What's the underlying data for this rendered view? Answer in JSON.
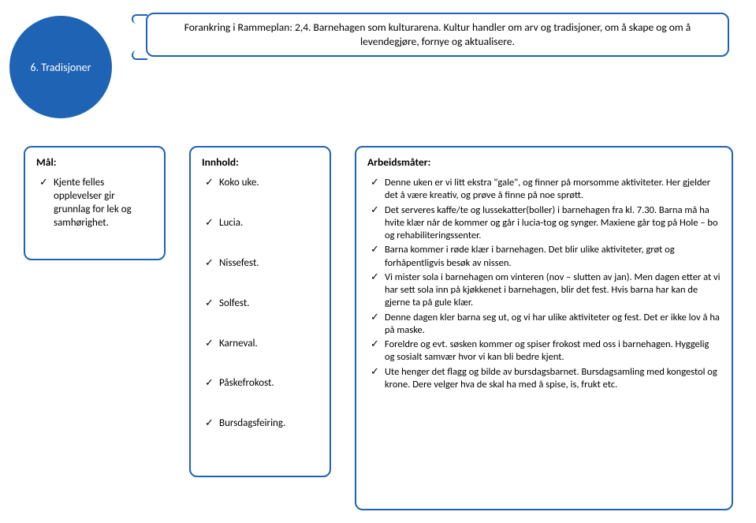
{
  "circle": {
    "label": "6. Tradisjoner"
  },
  "header": {
    "text": "Forankring i Rammeplan: 2,4. Barnehagen som kulturarena. Kultur handler om arv og tradisjoner, om å skape og om å levendegjøre, fornye og aktualisere."
  },
  "mal": {
    "title": "Mål:",
    "items": [
      "Kjente felles opplevelser gir grunnlag for lek og samhørighet."
    ]
  },
  "innhold": {
    "title": "Innhold:",
    "items": [
      "Koko uke.",
      "Lucia.",
      "Nissefest.",
      "Solfest.",
      "Karneval.",
      "Påskefrokost.",
      "Bursdagsfeiring."
    ]
  },
  "arbeid": {
    "title": "Arbeidsmåter:",
    "items": [
      "Denne uken er vi litt ekstra \"gale\", og finner på morsomme aktiviteter. Her gjelder det å være kreativ, og prøve å finne på noe sprøtt.",
      "Det serveres kaffe/te og lussekatter(boller) i barnehagen fra kl. 7.30. Barna må ha hvite klær når de kommer og går i lucia-tog og synger. Maxiene går tog på Hole – bo og rehabiliteringssenter.",
      "Barna kommer i røde klær i barnehagen. Det blir ulike aktiviteter, grøt og forhåpentligvis besøk av nissen.",
      "Vi mister sola i barnehagen om vinteren (nov – slutten av jan). Men dagen etter at vi har sett sola inn på kjøkkenet i barnehagen, blir det fest. Hvis barna har kan de gjerne ta på gule klær.",
      "Denne dagen kler barna seg ut, og vi har ulike aktiviteter og fest. Det er ikke lov å ha på maske.",
      "Foreldre og evt. søsken kommer og spiser frokost med oss i barnehagen. Hyggelig og sosialt samvær hvor vi kan bli bedre kjent.",
      "Ute henger det flagg og bilde av bursdagsbarnet. Bursdagsamling med kongestol og krone. Dere velger hva de skal ha med å spise, is, frukt etc."
    ]
  },
  "colors": {
    "accent": "#1f63b5",
    "text": "#000000",
    "bg": "#ffffff"
  }
}
